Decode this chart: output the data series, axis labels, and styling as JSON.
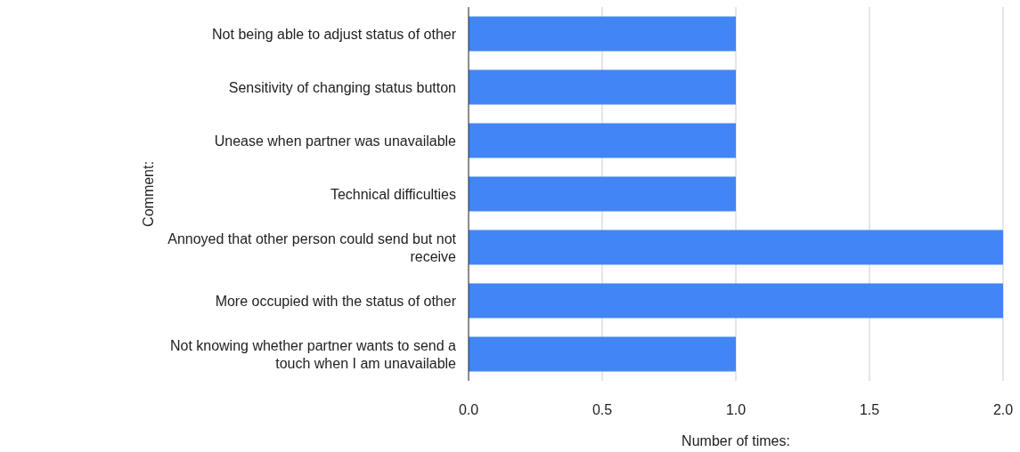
{
  "chart_data": {
    "type": "bar",
    "orientation": "horizontal",
    "xlabel": "Number of times:",
    "ylabel": "Comment:",
    "categories": [
      "Not being able to adjust status of other",
      "Sensitivity of changing status button",
      "Unease when partner was unavailable",
      "Technical difficulties",
      "Annoyed that other person could send but not receive",
      "More occupied with the status of other",
      "Not knowing whether partner wants to send a touch when I am unavailable"
    ],
    "values": [
      1,
      1,
      1,
      1,
      2,
      2,
      1
    ],
    "color": "#4285f4",
    "xlim": [
      0,
      2
    ],
    "xticks": [
      {
        "value": 0,
        "label": "0.0"
      },
      {
        "value": 0.5,
        "label": "0.5"
      },
      {
        "value": 1,
        "label": "1.0"
      },
      {
        "value": 1.5,
        "label": "1.5"
      },
      {
        "value": 2,
        "label": "2.0"
      }
    ],
    "grid": "x"
  }
}
